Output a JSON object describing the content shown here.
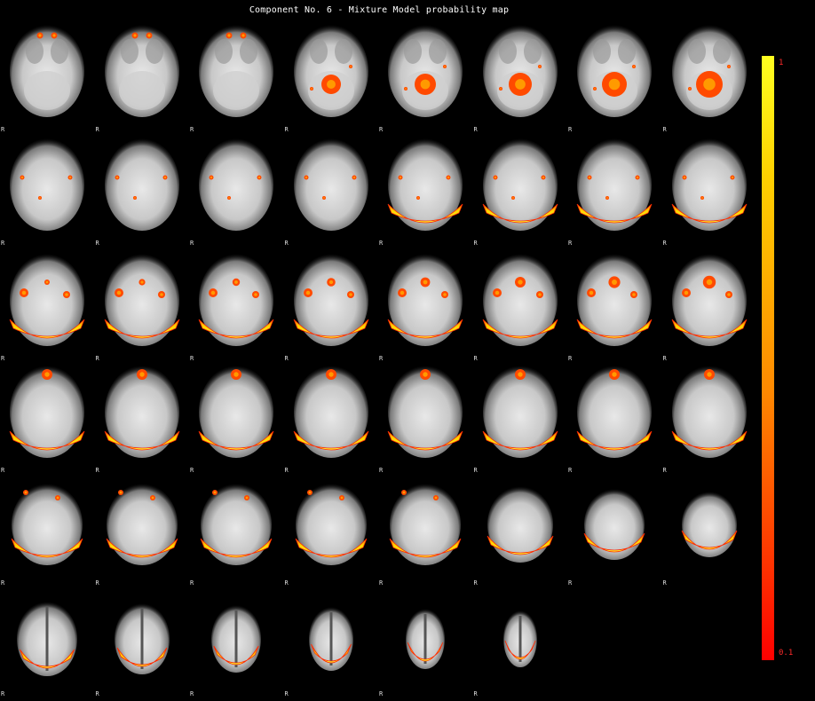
{
  "title": "Component No. 6 - Mixture Model probability map",
  "orientation_label": "R",
  "colorbar": {
    "max_label": "1",
    "min_label": "0.1"
  },
  "grid": {
    "rows": 6,
    "columns": 8,
    "slice_count": 46
  },
  "colors": {
    "background": "#000000",
    "brain_light": "#e6e6e6",
    "brain_dark": "#808080",
    "map_high": "#ffff20",
    "map_mid": "#ff8a00",
    "map_low": "#ff0000"
  }
}
